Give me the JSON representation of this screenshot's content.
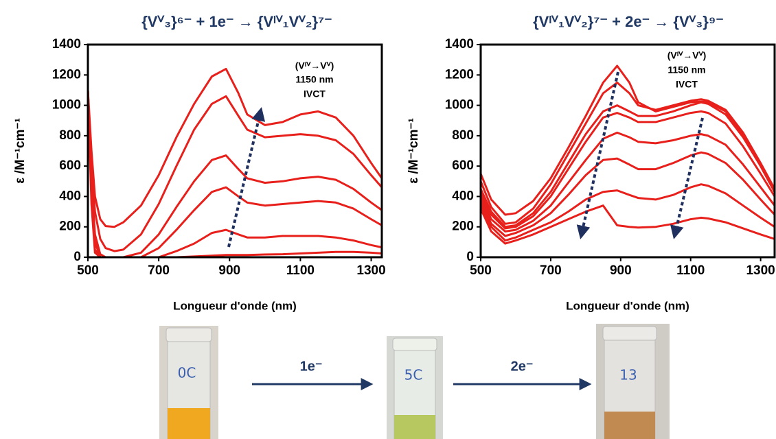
{
  "chart_data": [
    {
      "type": "line",
      "title": "{Vⱽ₃}⁶⁻ + 1e⁻ → {Vᴵⱽ₁Vⱽ₂}⁷⁻",
      "x_label": "Longueur d'onde (nm)",
      "y_label": "ε /M⁻¹cm⁻¹",
      "annotation": [
        "(Vᴵⱽ→Vⱽ)",
        "1150 nm",
        "IVCT"
      ],
      "x": [
        500,
        510,
        520,
        535,
        550,
        575,
        600,
        650,
        700,
        750,
        800,
        850,
        890,
        925,
        950,
        1000,
        1050,
        1100,
        1150,
        1200,
        1250,
        1300,
        1330
      ],
      "series": [
        {
          "color": "#e8201c",
          "values": [
            1100,
            700,
            400,
            250,
            205,
            200,
            230,
            340,
            540,
            790,
            1010,
            1190,
            1240,
            1080,
            940,
            870,
            890,
            940,
            960,
            920,
            800,
            620,
            520
          ]
        },
        {
          "color": "#e8201c",
          "values": [
            1100,
            600,
            300,
            120,
            60,
            40,
            50,
            150,
            350,
            600,
            840,
            1010,
            1060,
            930,
            840,
            790,
            800,
            810,
            800,
            770,
            680,
            540,
            460
          ]
        },
        {
          "color": "#e8201c",
          "values": [
            1100,
            500,
            150,
            20,
            0,
            0,
            0,
            30,
            150,
            330,
            500,
            640,
            670,
            580,
            520,
            490,
            500,
            520,
            530,
            510,
            450,
            360,
            310
          ]
        },
        {
          "color": "#e8201c",
          "values": [
            1100,
            450,
            100,
            0,
            0,
            0,
            0,
            0,
            60,
            180,
            310,
            430,
            460,
            400,
            360,
            340,
            350,
            360,
            370,
            360,
            320,
            250,
            210
          ]
        },
        {
          "color": "#e8201c",
          "values": [
            1100,
            400,
            50,
            0,
            0,
            0,
            0,
            0,
            0,
            40,
            90,
            160,
            180,
            150,
            130,
            130,
            140,
            140,
            140,
            130,
            110,
            80,
            65
          ]
        },
        {
          "color": "#e8201c",
          "values": [
            1100,
            350,
            30,
            0,
            0,
            0,
            0,
            0,
            0,
            0,
            5,
            10,
            15,
            15,
            15,
            18,
            20,
            25,
            30,
            35,
            35,
            30,
            25
          ]
        }
      ],
      "xlim": [
        500,
        1330
      ],
      "xticks": [
        500,
        700,
        900,
        1100,
        1300
      ],
      "ylim": [
        0,
        1400
      ],
      "yticks": [
        0,
        200,
        400,
        600,
        800,
        1000,
        1200,
        1400
      ]
    },
    {
      "type": "line",
      "title": "{Vᴵⱽ₁Vⱽ₂}⁷⁻ + 2e⁻ → {Vⱽ₃}⁹⁻",
      "x_label": "Longueur d'onde (nm)",
      "y_label": "ε /M⁻¹cm⁻¹",
      "annotation": [
        "(Vᴵⱽ→Vⱽ)",
        "1150 nm",
        "IVCT"
      ],
      "x": [
        500,
        530,
        570,
        600,
        650,
        700,
        750,
        800,
        850,
        890,
        925,
        950,
        1000,
        1050,
        1100,
        1130,
        1150,
        1200,
        1250,
        1300,
        1340
      ],
      "series": [
        {
          "color": "#e8201c",
          "values": [
            550,
            380,
            280,
            290,
            370,
            520,
            720,
            930,
            1150,
            1260,
            1150,
            1020,
            960,
            990,
            1020,
            1025,
            1020,
            960,
            800,
            600,
            430
          ]
        },
        {
          "color": "#e8201c",
          "values": [
            500,
            330,
            220,
            230,
            320,
            480,
            680,
            880,
            1080,
            1150,
            1080,
            1000,
            970,
            1000,
            1030,
            1040,
            1030,
            970,
            820,
            620,
            450
          ]
        },
        {
          "color": "#e8201c",
          "values": [
            450,
            300,
            200,
            210,
            290,
            430,
            620,
            810,
            960,
            1000,
            960,
            930,
            930,
            960,
            1000,
            1020,
            1010,
            940,
            790,
            600,
            430
          ]
        },
        {
          "color": "#e8201c",
          "values": [
            420,
            280,
            190,
            200,
            270,
            400,
            580,
            760,
            920,
            950,
            920,
            890,
            890,
            920,
            950,
            960,
            950,
            880,
            730,
            550,
            400
          ]
        },
        {
          "color": "#e8201c",
          "values": [
            400,
            250,
            170,
            180,
            240,
            340,
            490,
            640,
            780,
            820,
            790,
            760,
            750,
            770,
            800,
            810,
            800,
            740,
            610,
            460,
            340
          ]
        },
        {
          "color": "#e8201c",
          "values": [
            380,
            220,
            140,
            160,
            210,
            290,
            410,
            540,
            640,
            650,
            610,
            580,
            580,
            620,
            670,
            690,
            680,
            620,
            510,
            380,
            280
          ]
        },
        {
          "color": "#e8201c",
          "values": [
            350,
            200,
            110,
            130,
            180,
            230,
            300,
            380,
            430,
            440,
            410,
            390,
            380,
            410,
            460,
            480,
            470,
            420,
            340,
            260,
            200
          ]
        },
        {
          "color": "#e8201c",
          "values": [
            320,
            170,
            90,
            110,
            150,
            200,
            250,
            300,
            340,
            210,
            200,
            195,
            200,
            220,
            250,
            260,
            255,
            230,
            190,
            150,
            120
          ]
        }
      ],
      "xlim": [
        500,
        1340
      ],
      "xticks": [
        500,
        700,
        900,
        1100,
        1300
      ],
      "ylim": [
        0,
        1400
      ],
      "yticks": [
        0,
        200,
        400,
        600,
        800,
        1000,
        1200,
        1400
      ]
    }
  ],
  "scheme": {
    "vial_labels": [
      "0C",
      "5C",
      "13"
    ],
    "steps": [
      "1e⁻",
      "2e⁻"
    ]
  }
}
